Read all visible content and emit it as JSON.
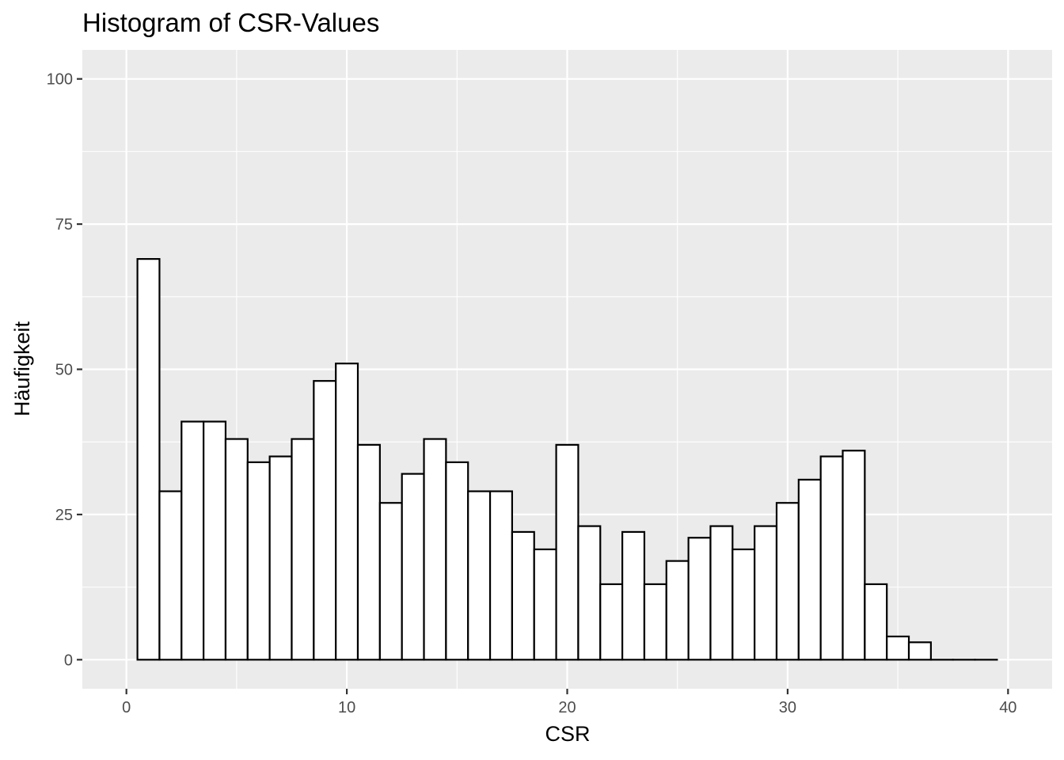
{
  "chart_data": {
    "type": "bar",
    "title": "Histogram of CSR-Values",
    "xlabel": "CSR",
    "ylabel": "Häufigkeit",
    "bin_width": 1,
    "bins": [
      {
        "x": 1,
        "count": 69
      },
      {
        "x": 2,
        "count": 29
      },
      {
        "x": 3,
        "count": 41
      },
      {
        "x": 4,
        "count": 41
      },
      {
        "x": 5,
        "count": 38
      },
      {
        "x": 6,
        "count": 34
      },
      {
        "x": 7,
        "count": 35
      },
      {
        "x": 8,
        "count": 38
      },
      {
        "x": 9,
        "count": 48
      },
      {
        "x": 10,
        "count": 51
      },
      {
        "x": 11,
        "count": 37
      },
      {
        "x": 12,
        "count": 27
      },
      {
        "x": 13,
        "count": 32
      },
      {
        "x": 14,
        "count": 38
      },
      {
        "x": 15,
        "count": 34
      },
      {
        "x": 16,
        "count": 29
      },
      {
        "x": 17,
        "count": 29
      },
      {
        "x": 18,
        "count": 22
      },
      {
        "x": 19,
        "count": 19
      },
      {
        "x": 20,
        "count": 37
      },
      {
        "x": 21,
        "count": 23
      },
      {
        "x": 22,
        "count": 13
      },
      {
        "x": 23,
        "count": 22
      },
      {
        "x": 24,
        "count": 13
      },
      {
        "x": 25,
        "count": 17
      },
      {
        "x": 26,
        "count": 21
      },
      {
        "x": 27,
        "count": 23
      },
      {
        "x": 28,
        "count": 19
      },
      {
        "x": 29,
        "count": 23
      },
      {
        "x": 30,
        "count": 27
      },
      {
        "x": 31,
        "count": 31
      },
      {
        "x": 32,
        "count": 35
      },
      {
        "x": 33,
        "count": 36
      },
      {
        "x": 34,
        "count": 13
      },
      {
        "x": 35,
        "count": 4
      },
      {
        "x": 36,
        "count": 3
      },
      {
        "x": 37,
        "count": 0
      },
      {
        "x": 38,
        "count": 0
      },
      {
        "x": 39,
        "count": 0
      }
    ],
    "xlim": [
      -2,
      42
    ],
    "ylim": [
      -5,
      105
    ],
    "x_ticks": [
      0,
      10,
      20,
      30,
      40
    ],
    "x_tick_labels": [
      "0",
      "10",
      "20",
      "30",
      "40"
    ],
    "y_ticks": [
      0,
      25,
      50,
      75,
      100
    ],
    "y_tick_labels": [
      "0",
      "25",
      "50",
      "75",
      "100"
    ],
    "grid": true,
    "legend": "none",
    "colors": {
      "panel_background": "#ebebeb",
      "grid": "#ffffff",
      "bar_fill": "#ffffff",
      "bar_outline": "#000000",
      "tick_text": "#4d4d4d"
    }
  }
}
